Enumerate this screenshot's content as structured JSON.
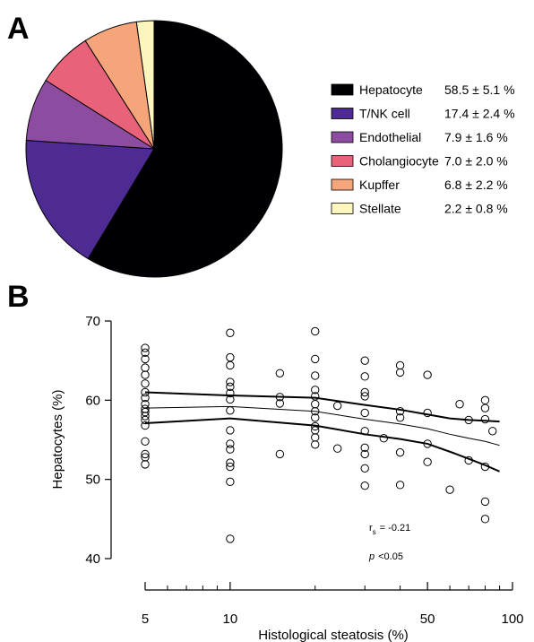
{
  "panels": {
    "a_label": "A",
    "b_label": "B"
  },
  "chart_data": [
    {
      "type": "pie",
      "labels": [
        "Hepatocyte",
        "T/NK cell",
        "Endothelial",
        "Cholangiocyte",
        "Kupffer",
        "Stellate"
      ],
      "values": [
        58.5,
        17.4,
        7.9,
        7.0,
        6.8,
        2.2
      ],
      "value_labels": [
        "58.5 ± 5.1 %",
        "17.4 ± 2.4 %",
        "7.9 ± 1.6 %",
        "7.0 ± 2.0 %",
        "6.8 ± 2.2 %",
        "2.2 ± 0.8 %"
      ],
      "colors": [
        "#000004",
        "#4e2a93",
        "#8c4da0",
        "#e8627a",
        "#f6a57a",
        "#fcf6be"
      ],
      "legend": "right"
    },
    {
      "type": "scatter",
      "xlabel": "Histological steatosis (%)",
      "ylabel": "Hepatocytes (%)",
      "xscale": "log",
      "xlim": [
        5,
        100
      ],
      "ylim": [
        40,
        70
      ],
      "xticks": [
        5,
        10,
        50,
        100
      ],
      "yticks": [
        40,
        50,
        60,
        70
      ],
      "annotation": {
        "r_label": "r",
        "r_sub": "s",
        "r_value": "= -0.21",
        "p_label": "p",
        "p_value": "<0.05"
      },
      "points": [
        [
          5,
          66.6
        ],
        [
          5,
          66.0
        ],
        [
          5,
          65.2
        ],
        [
          5,
          64.1
        ],
        [
          5,
          63.2
        ],
        [
          5,
          62.1
        ],
        [
          5,
          61.0
        ],
        [
          5,
          60.3
        ],
        [
          5,
          59.5
        ],
        [
          5,
          58.9
        ],
        [
          5,
          58.5
        ],
        [
          5,
          58.0
        ],
        [
          5,
          57.5
        ],
        [
          5,
          56.8
        ],
        [
          5,
          54.8
        ],
        [
          5,
          53.2
        ],
        [
          5,
          52.8
        ],
        [
          5,
          51.9
        ],
        [
          10,
          68.5
        ],
        [
          10,
          65.4
        ],
        [
          10,
          64.4
        ],
        [
          10,
          62.3
        ],
        [
          10,
          61.7
        ],
        [
          10,
          60.9
        ],
        [
          10,
          60.1
        ],
        [
          10,
          58.7
        ],
        [
          10,
          56.2
        ],
        [
          10,
          54.5
        ],
        [
          10,
          53.8
        ],
        [
          10,
          52.1
        ],
        [
          10,
          51.6
        ],
        [
          10,
          49.7
        ],
        [
          10,
          42.5
        ],
        [
          15,
          63.4
        ],
        [
          15,
          60.4
        ],
        [
          15,
          59.6
        ],
        [
          15,
          53.2
        ],
        [
          20,
          68.7
        ],
        [
          20,
          65.2
        ],
        [
          20,
          63.1
        ],
        [
          20,
          61.3
        ],
        [
          20,
          60.5
        ],
        [
          20,
          59.5
        ],
        [
          20,
          58.6
        ],
        [
          20,
          57.8
        ],
        [
          20,
          56.7
        ],
        [
          20,
          56.2
        ],
        [
          20,
          55.3
        ],
        [
          20,
          54.4
        ],
        [
          24,
          59.3
        ],
        [
          24,
          53.9
        ],
        [
          30,
          65.0
        ],
        [
          30,
          63.0
        ],
        [
          30,
          61.0
        ],
        [
          30,
          60.5
        ],
        [
          30,
          58.4
        ],
        [
          30,
          56.1
        ],
        [
          30,
          54.0
        ],
        [
          30,
          53.2
        ],
        [
          30,
          51.4
        ],
        [
          30,
          49.2
        ],
        [
          35,
          55.2
        ],
        [
          40,
          64.4
        ],
        [
          40,
          63.5
        ],
        [
          40,
          58.6
        ],
        [
          40,
          57.8
        ],
        [
          40,
          53.4
        ],
        [
          40,
          49.3
        ],
        [
          50,
          63.2
        ],
        [
          50,
          58.4
        ],
        [
          50,
          54.5
        ],
        [
          50,
          52.2
        ],
        [
          60,
          48.7
        ],
        [
          65,
          59.5
        ],
        [
          70,
          57.5
        ],
        [
          70,
          52.4
        ],
        [
          80,
          60.0
        ],
        [
          80,
          59.0
        ],
        [
          80,
          57.6
        ],
        [
          80,
          51.6
        ],
        [
          80,
          47.2
        ],
        [
          80,
          45.0
        ],
        [
          85,
          56.1
        ]
      ],
      "fit": {
        "x": [
          5,
          10,
          20,
          30,
          40,
          50,
          60,
          70,
          80,
          90
        ],
        "mean": [
          59.0,
          59.2,
          58.6,
          57.6,
          57.0,
          56.4,
          55.7,
          55.2,
          54.8,
          54.3
        ],
        "upper": [
          61.0,
          60.6,
          60.3,
          59.4,
          58.8,
          58.2,
          57.7,
          57.5,
          57.4,
          57.3
        ],
        "lower": [
          57.1,
          57.7,
          56.8,
          55.7,
          55.1,
          54.5,
          53.5,
          52.6,
          51.8,
          51.0
        ]
      }
    }
  ]
}
